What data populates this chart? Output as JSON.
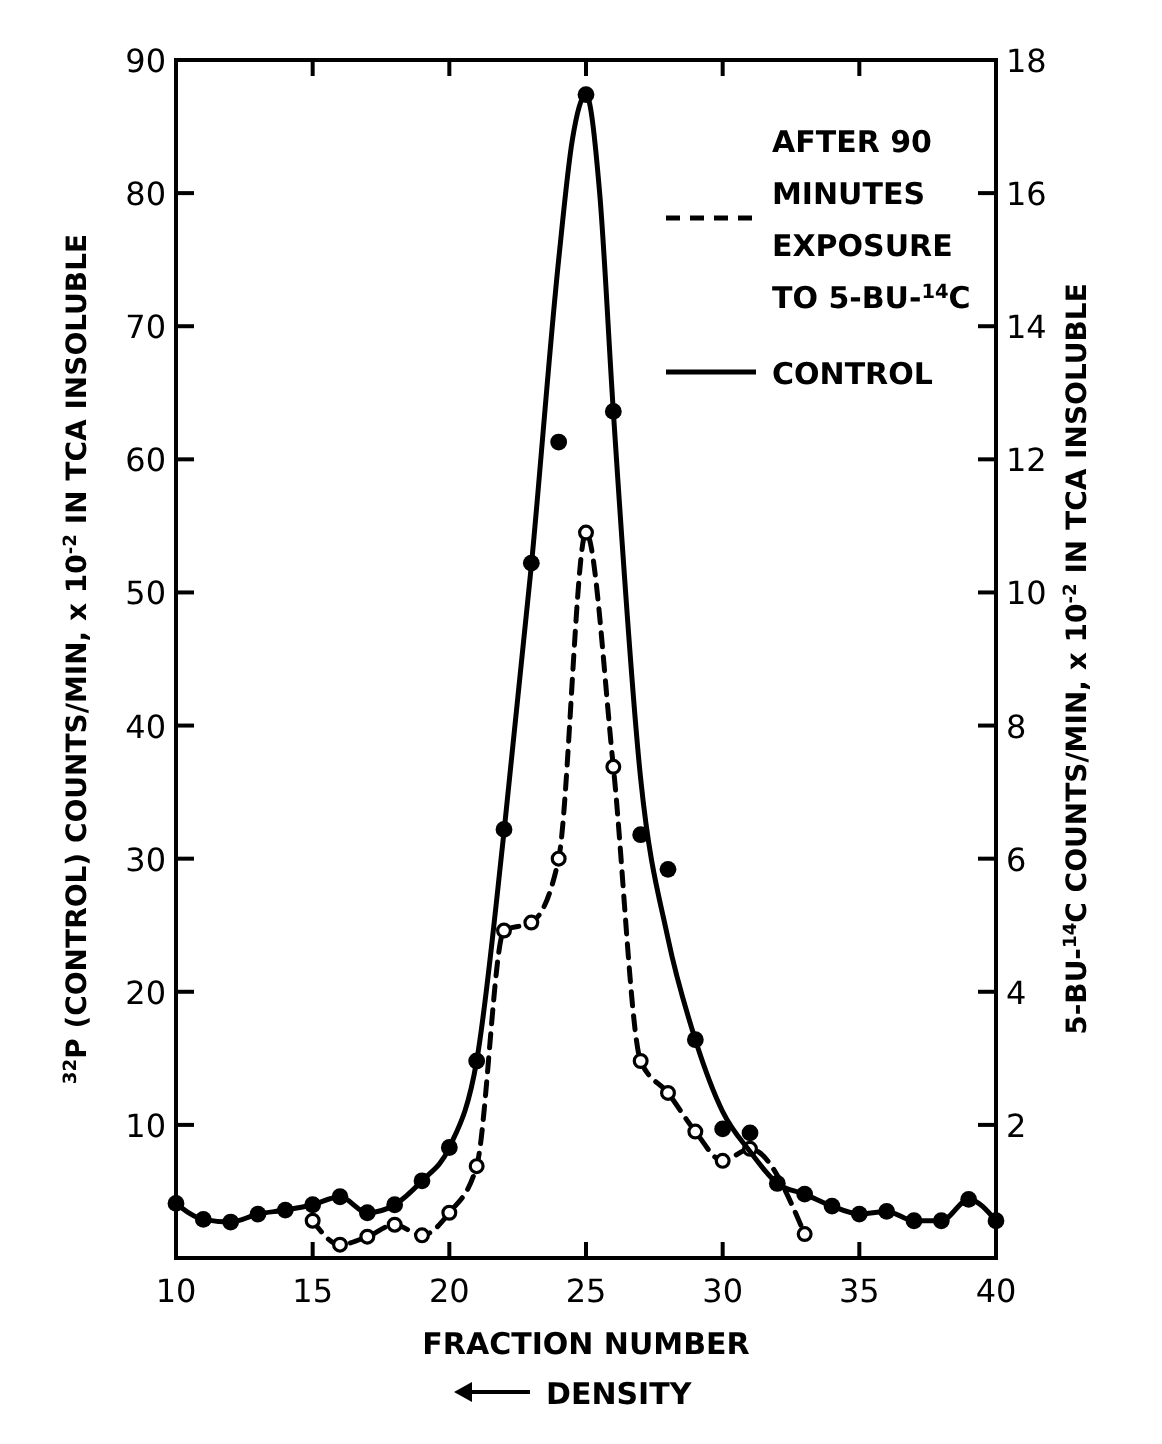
{
  "chart_data": {
    "type": "line",
    "xlabel": "FRACTION NUMBER",
    "ylabel": "$^{32}$P (CONTROL) COUNTS/MIN, x 10$^{-2}$ IN TCA INSOLUBLE",
    "y2label": "5-BU-$^{14}$C COUNTS/MIN, x 10$^{-2}$ IN TCA INSOLUBLE",
    "annotations": [
      "DENSITY"
    ],
    "xlim": [
      10,
      40
    ],
    "xticks": [
      10,
      15,
      20,
      25,
      30,
      35,
      40
    ],
    "ylim": [
      0,
      90
    ],
    "yticks": [
      10,
      20,
      30,
      40,
      50,
      60,
      70,
      80,
      90
    ],
    "y2lim": [
      0,
      18
    ],
    "y2ticks": [
      2,
      4,
      6,
      8,
      10,
      12,
      14,
      16,
      18
    ],
    "legend": "top right",
    "series": [
      {
        "name": "AFTER 90 MINUTES EXPOSURE TO 5-BU-$^{14}$C",
        "axis": "y2",
        "color": "#000000",
        "line_style": "dashed",
        "marker": "circle",
        "x": [
          15,
          16,
          17,
          18,
          19,
          20,
          21,
          22,
          23,
          24,
          25,
          26,
          27,
          28,
          29,
          30,
          31,
          33
        ],
        "values": [
          0.56,
          0.2,
          0.32,
          0.5,
          0.34,
          0.68,
          1.38,
          4.92,
          5.04,
          6.0,
          10.9,
          7.38,
          2.96,
          2.48,
          1.9,
          1.46,
          1.64,
          0.36
        ]
      },
      {
        "name": "CONTROL",
        "color": "#000000",
        "line_style": "solid",
        "marker": "none",
        "x": [
          10,
          11,
          12,
          13,
          14,
          15,
          16,
          17,
          18,
          19,
          20,
          21,
          22,
          23,
          24,
          24.5,
          25,
          25.5,
          26,
          27,
          28,
          29,
          30,
          31,
          32,
          33,
          34,
          35,
          36,
          37,
          38,
          39,
          40
        ],
        "values": [
          4.1,
          2.9,
          2.7,
          3.3,
          3.6,
          4.0,
          4.6,
          3.4,
          4.0,
          5.8,
          8.3,
          14.8,
          32,
          52,
          75,
          84,
          87.4,
          80,
          63.6,
          36,
          24,
          16.4,
          11,
          8,
          5.6,
          4.8,
          3.9,
          3.3,
          3.5,
          2.8,
          2.8,
          4.4,
          2.8
        ]
      },
      {
        "type": "scatter",
        "color": "#000000",
        "marker": "circle",
        "x": [
          10,
          11,
          12,
          13,
          14,
          15,
          16,
          17,
          18,
          19,
          20,
          21,
          22,
          23,
          24,
          25,
          26,
          27,
          28,
          29,
          30,
          31,
          32,
          33,
          34,
          35,
          36,
          37,
          38,
          39,
          40
        ],
        "values": [
          4.1,
          2.9,
          2.7,
          3.3,
          3.6,
          4.0,
          4.6,
          3.4,
          4.0,
          5.8,
          8.3,
          14.8,
          32.2,
          52.2,
          61.3,
          87.4,
          63.6,
          31.8,
          29.2,
          16.4,
          9.7,
          9.4,
          5.6,
          4.8,
          3.9,
          3.3,
          3.5,
          2.8,
          2.8,
          4.4,
          2.8
        ]
      }
    ]
  }
}
